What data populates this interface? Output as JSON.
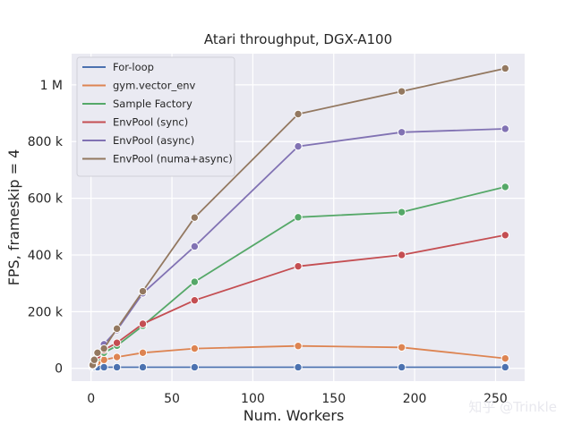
{
  "chart_data": {
    "type": "line",
    "title": "Atari throughput, DGX-A100",
    "xlabel": "Num. Workers",
    "ylabel": "FPS, frameskip = 4",
    "xlim": [
      -12,
      268
    ],
    "ylim": [
      -45000,
      1110000
    ],
    "xticks": [
      0,
      50,
      100,
      150,
      200,
      250
    ],
    "xtick_labels": [
      "0",
      "50",
      "100",
      "150",
      "200",
      "250"
    ],
    "yticks": [
      0,
      200000,
      400000,
      600000,
      800000,
      1000000
    ],
    "ytick_labels": [
      "0",
      "200 k",
      "400 k",
      "600 k",
      "800 k",
      "1 M"
    ],
    "grid": true,
    "legend_position": "top-left",
    "series": [
      {
        "name": "For-loop",
        "color": "#4c72b0",
        "x": [
          1,
          2,
          4,
          8,
          16,
          32,
          64,
          128,
          192,
          256
        ],
        "y": [
          4000,
          4000,
          4000,
          4000,
          4000,
          4000,
          4000,
          4000,
          4000,
          4000
        ]
      },
      {
        "name": "gym.vector_env",
        "color": "#dd8452",
        "x": [
          1,
          2,
          4,
          8,
          16,
          32,
          64,
          128,
          192,
          256
        ],
        "y": [
          8000,
          14000,
          22000,
          30000,
          40000,
          55000,
          70000,
          79000,
          74000,
          35000
        ]
      },
      {
        "name": "Sample Factory",
        "color": "#55a868",
        "x": [
          1,
          2,
          4,
          8,
          16,
          32,
          64,
          128,
          192,
          256
        ],
        "y": [
          10000,
          20000,
          38000,
          55000,
          80000,
          150000,
          305000,
          533000,
          551000,
          640000
        ]
      },
      {
        "name": "EnvPool (sync)",
        "color": "#c44e52",
        "x": [
          1,
          2,
          4,
          8,
          16,
          32,
          64,
          128,
          192,
          256
        ],
        "y": [
          10000,
          22000,
          45000,
          65000,
          90000,
          157000,
          240000,
          360000,
          400000,
          470000
        ]
      },
      {
        "name": "EnvPool (async)",
        "color": "#8172b3",
        "x": [
          1,
          2,
          4,
          8,
          16,
          32,
          64,
          128,
          192,
          256
        ],
        "y": [
          12000,
          28000,
          55000,
          85000,
          135000,
          265000,
          430000,
          783000,
          833000,
          845000
        ]
      },
      {
        "name": "EnvPool (numa+async)",
        "color": "#937860",
        "x": [
          1,
          2,
          4,
          8,
          16,
          32,
          64,
          128,
          192,
          256
        ],
        "y": [
          12000,
          30000,
          55000,
          70000,
          140000,
          272000,
          532000,
          897000,
          977000,
          1058000
        ]
      }
    ]
  },
  "watermark": "知乎 @Trinkle"
}
